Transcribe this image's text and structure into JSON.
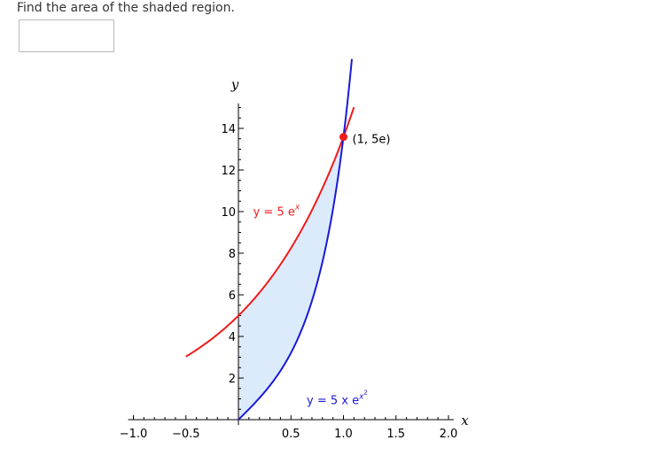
{
  "question": {
    "text": "Find the area of the shaded region."
  },
  "answer_field": {
    "value": "",
    "placeholder": ""
  },
  "colors": {
    "shade": "#dcebfc",
    "curve_red": "#ee1c1c",
    "curve_blue": "#1a1ad6",
    "point": "#ee1c1c",
    "axis": "#000000"
  },
  "chart_data": {
    "type": "line",
    "xlabel": "x",
    "ylabel": "y",
    "xlim": [
      -1.0,
      2.0
    ],
    "ylim": [
      0,
      15
    ],
    "x_ticks": [
      "-1.0",
      "-0.5",
      "0.5",
      "1.0",
      "1.5",
      "2.0"
    ],
    "y_ticks": [
      "2",
      "4",
      "6",
      "8",
      "10",
      "12",
      "14"
    ],
    "series": [
      {
        "name": "y = 5e^x",
        "label_main": "y = 5 e",
        "label_sup": "x",
        "color": "#ee1c1c",
        "x_range": [
          -0.5,
          1.1
        ]
      },
      {
        "name": "y = 5xe^(x^2)",
        "label_main": "y = 5 x e",
        "label_sup": "x",
        "label_sup2": "2",
        "color": "#1a1ad6",
        "x_range": [
          0,
          1.08
        ]
      }
    ],
    "shaded_region": {
      "x_from": 0,
      "x_to": 1,
      "between": [
        "y = 5e^x",
        "y = 5xe^(x^2)"
      ]
    },
    "intersection_point": {
      "x": 1,
      "y": 13.59,
      "label": "(1, 5e)"
    }
  }
}
